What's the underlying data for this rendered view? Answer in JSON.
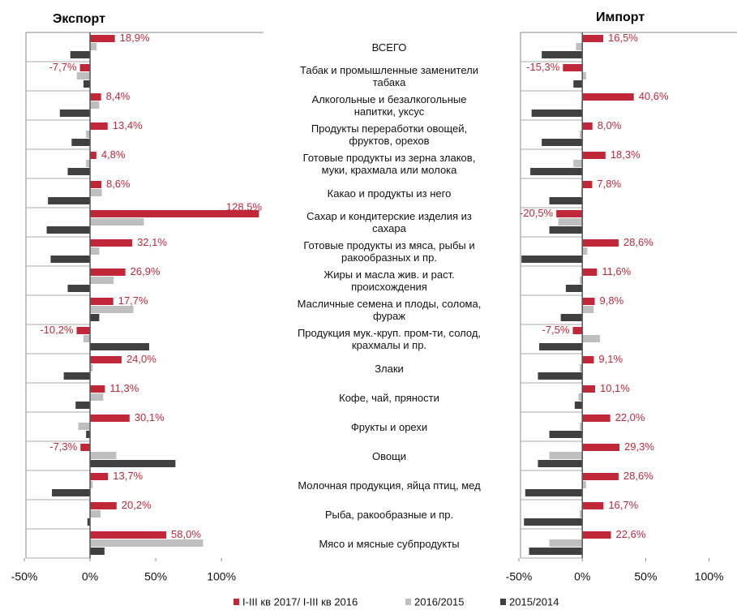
{
  "chart_data": [
    {
      "type": "bar",
      "orientation": "horizontal",
      "title": "Экспорт",
      "categories": [
        "ВСЕГО",
        "Табак и промышленные заменители\nтабака",
        "Алкогольные и безалкогольные\nнапитки, уксус",
        "Продукты переработки овощей,\nфруктов, орехов",
        "Готовые продукты из зерна злаков,\nмуки, крахмала или молока",
        "Какао и продукты из него",
        "Сахар и кондитерские изделия из\nсахара",
        "Готовые продукты из мяса, рыбы и\nракообразных и пр.",
        "Жиры и масла жив. и раст.\nпроисхождения",
        "Масличные семена и плоды, солома,\nфураж",
        "Продукция мук.-круп. пром-ти, солод,\nкрахмалы и пр.",
        "Злаки",
        "Кофе, чай, пряности",
        "Фрукты и орехи",
        "Овощи",
        "Молочная продукция, яйца птиц, мед",
        "Рыба, ракообразные и пр.",
        "Мясо и мясные субпродукты"
      ],
      "series": [
        {
          "name": "I-III кв 2017/ I-III кв 2016",
          "color": "#c0283a",
          "values": [
            18.9,
            -7.7,
            8.4,
            13.4,
            4.8,
            8.6,
            128.5,
            32.1,
            26.9,
            17.7,
            -10.2,
            24.0,
            11.3,
            30.1,
            -7.3,
            13.7,
            20.2,
            58.0
          ],
          "value_labels": [
            "18,9%",
            "-7,7%",
            "8,4%",
            "13,4%",
            "4,8%",
            "8,6%",
            "128,5%",
            "32,1%",
            "26,9%",
            "17,7%",
            "-10,2%",
            "24,0%",
            "11,3%",
            "30,1%",
            "-7,3%",
            "13,7%",
            "20,2%",
            "58,0%"
          ]
        },
        {
          "name": "2016/2015",
          "color": "#bfbfbf",
          "values": [
            5,
            -10,
            7,
            -3,
            -3,
            9,
            41,
            7,
            18,
            33,
            -5,
            2,
            10,
            -9,
            20,
            2,
            8,
            86
          ]
        },
        {
          "name": "2015/2014",
          "color": "#404040",
          "values": [
            -15,
            -5,
            -23,
            -14,
            -17,
            -32,
            -33,
            -30,
            -17,
            7,
            45,
            -20,
            -11,
            -3,
            65,
            -29,
            -2,
            11
          ]
        }
      ],
      "xlim": [
        -50,
        132
      ],
      "xticks": [
        {
          "value": -50,
          "label": "-50%"
        },
        {
          "value": 0,
          "label": "0%"
        },
        {
          "value": 50,
          "label": "50%"
        },
        {
          "value": 100,
          "label": "100%"
        }
      ]
    },
    {
      "type": "bar",
      "orientation": "horizontal",
      "title": "Импорт",
      "series": [
        {
          "color": "#c0283a",
          "values": [
            16.5,
            -15.3,
            40.6,
            8.0,
            18.3,
            7.8,
            -20.5,
            28.6,
            11.6,
            9.8,
            -7.5,
            9.1,
            10.1,
            22.0,
            29.3,
            28.6,
            16.7,
            22.6
          ],
          "value_labels": [
            "16,5%",
            "-15,3%",
            "40,6%",
            "8,0%",
            "18,3%",
            "7,8%",
            "-20,5%",
            "28,6%",
            "11,6%",
            "9,8%",
            "-7,5%",
            "9,1%",
            "10,1%",
            "22,0%",
            "29,3%",
            "28,6%",
            "16,7%",
            "22,6%"
          ]
        },
        {
          "color": "#bfbfbf",
          "values": [
            -5,
            3,
            -1,
            -2,
            -7,
            -1,
            -19,
            4,
            -2,
            9,
            14,
            -2,
            -3,
            -2,
            -26,
            3,
            -2,
            -26
          ]
        },
        {
          "color": "#404040",
          "values": [
            -32,
            -7,
            -40,
            -32,
            -41,
            -26,
            -26,
            -48,
            -13,
            -17,
            -34,
            -35,
            -6,
            -26,
            -35,
            -45,
            -46,
            -42
          ]
        }
      ],
      "xlim": [
        -50,
        122
      ],
      "xticks": [
        {
          "value": -50,
          "label": "-50%"
        },
        {
          "value": 0,
          "label": "0%"
        },
        {
          "value": 50,
          "label": "50%"
        },
        {
          "value": 100,
          "label": "100%"
        }
      ]
    }
  ]
}
